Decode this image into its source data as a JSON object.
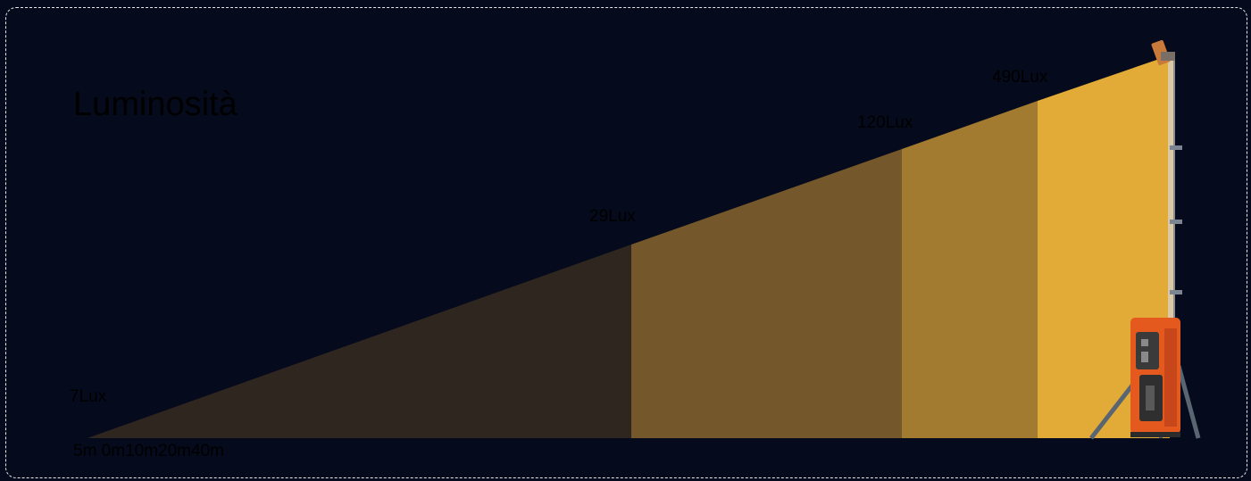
{
  "title": "Luminosità",
  "lux_labels": {
    "l7": "7Lux",
    "l29": "29Lux",
    "l120": "120Lux",
    "l490": "490Lux"
  },
  "distance_labels": "5m 0m10m20m40m",
  "colors": {
    "background": "#050b1c",
    "zone_far": "#302620",
    "zone_mid": "#74572b",
    "zone_near": "#a27a30",
    "zone_closest": "#e2aa37",
    "tower_body": "#e4591e",
    "tripod": "#5a6572",
    "text": "#000000",
    "frame_border": "#e8e8e8"
  },
  "icons": {
    "light_tower": "light-tower-icon"
  }
}
